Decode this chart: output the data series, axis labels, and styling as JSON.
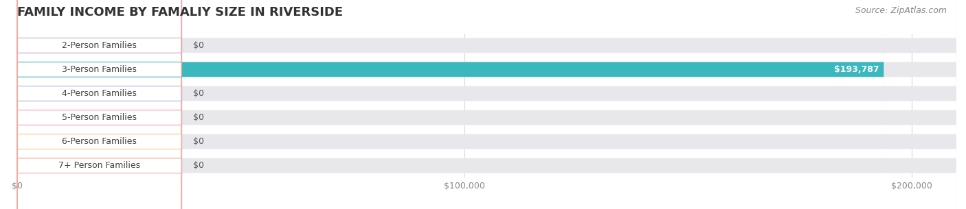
{
  "title": "FAMILY INCOME BY FAMALIY SIZE IN RIVERSIDE",
  "source": "Source: ZipAtlas.com",
  "categories": [
    "2-Person Families",
    "3-Person Families",
    "4-Person Families",
    "5-Person Families",
    "6-Person Families",
    "7+ Person Families"
  ],
  "values": [
    0,
    193787,
    0,
    0,
    0,
    0
  ],
  "bar_colors": [
    "#c9a8d4",
    "#3bb8be",
    "#aab4e8",
    "#f79ab5",
    "#f5c98a",
    "#f5a8a0"
  ],
  "label_colors": [
    "#c9a8d4",
    "#3bb8be",
    "#aab4e8",
    "#f79ab5",
    "#f5c98a",
    "#f5a8a0"
  ],
  "bar_bg_color": "#e8e8ec",
  "value_label_color_zero": "#555555",
  "value_label_color_nonzero": "#ffffff",
  "xlim": [
    0,
    210000
  ],
  "xticks": [
    0,
    100000,
    200000
  ],
  "xtick_labels": [
    "$0",
    "$100,000",
    "$200,000"
  ],
  "background_color": "#ffffff",
  "title_fontsize": 13,
  "source_fontsize": 9,
  "label_fontsize": 9,
  "value_fontsize": 9,
  "tick_fontsize": 9,
  "bar_height": 0.62,
  "title_color": "#333333",
  "tick_color": "#888888",
  "grid_color": "#d8d8d8"
}
